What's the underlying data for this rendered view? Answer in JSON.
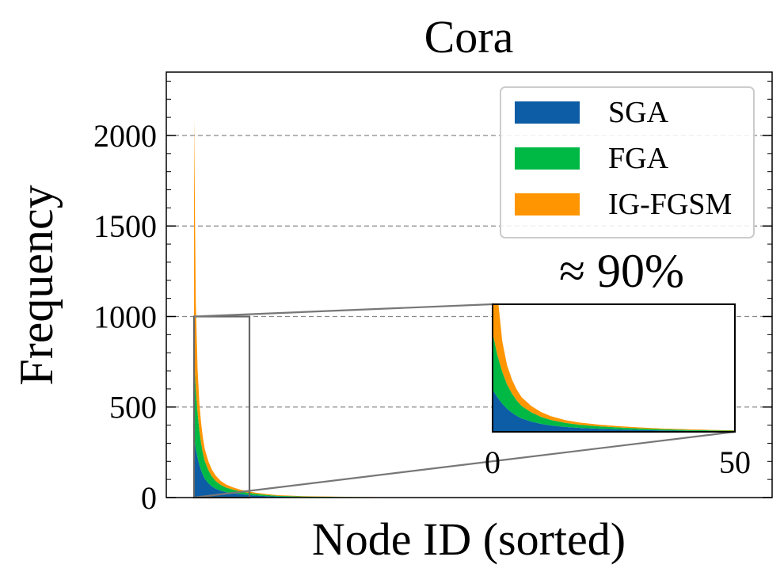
{
  "chart_data": {
    "type": "area",
    "title": "Cora",
    "xlabel": "Node ID (sorted)",
    "ylabel": "Frequency",
    "ylim": [
      0,
      2350
    ],
    "yticks": [
      0,
      500,
      1000,
      1500,
      2000
    ],
    "grid": "horizontal dashed at major y ticks",
    "legend_position": "top-right",
    "stacked": true,
    "series": [
      {
        "name": "SGA",
        "color": "#0C5DA5",
        "x": [
          0,
          1,
          2,
          3,
          4,
          5,
          6,
          8,
          10,
          12,
          15,
          18,
          22,
          26,
          30,
          35,
          40,
          45,
          50,
          60,
          80,
          100,
          130
        ],
        "values": [
          330,
          270,
          220,
          180,
          150,
          125,
          105,
          80,
          62,
          50,
          38,
          30,
          24,
          19,
          15,
          11,
          8,
          6,
          5,
          3,
          2,
          1,
          0
        ]
      },
      {
        "name": "FGA",
        "color": "#00B945",
        "x": [
          0,
          1,
          2,
          3,
          4,
          5,
          6,
          8,
          10,
          12,
          15,
          18,
          22,
          26,
          30,
          35,
          40,
          45,
          50,
          60,
          80,
          100,
          130
        ],
        "values": [
          450,
          330,
          250,
          190,
          150,
          120,
          98,
          72,
          55,
          43,
          32,
          25,
          19,
          15,
          12,
          9,
          7,
          5,
          4,
          3,
          2,
          1,
          0
        ]
      },
      {
        "name": "IG-FGSM",
        "color": "#FF9500",
        "x": [
          0,
          1,
          2,
          3,
          4,
          5,
          6,
          8,
          10,
          12,
          15,
          18,
          22,
          26,
          30,
          35,
          40,
          45,
          50,
          60,
          80,
          100,
          130
        ],
        "values": [
          1320,
          480,
          240,
          150,
          110,
          85,
          68,
          50,
          38,
          30,
          22,
          17,
          13,
          10,
          8,
          6,
          5,
          4,
          3,
          2,
          1,
          1,
          0
        ]
      }
    ],
    "zoom_box": {
      "xlim": [
        0,
        50
      ],
      "ylim": [
        0,
        1000
      ]
    },
    "inset": {
      "xticks": [
        0,
        50
      ],
      "xlim": [
        0,
        50
      ],
      "ylim": [
        0,
        1000
      ]
    },
    "annotation": "≈ 90%"
  }
}
